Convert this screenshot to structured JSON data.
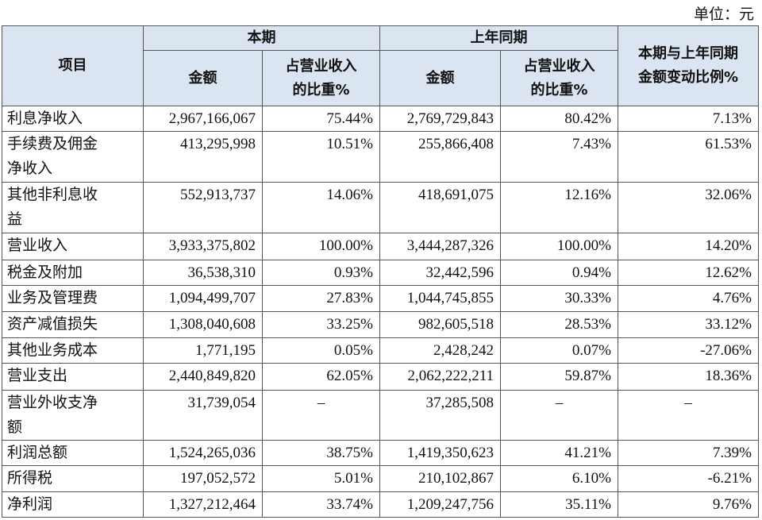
{
  "unit": "单位：元",
  "table": {
    "header": {
      "row1": [
        "项目",
        "本期",
        "上年同期",
        "本期与上年同期金额变动比例%"
      ],
      "row2": [
        "金额",
        "占营业收入的比重%",
        "金额",
        "占营业收入的比重%"
      ]
    },
    "rows": [
      [
        "利息净收入",
        "2,967,166,067",
        "75.44%",
        "2,769,729,843",
        "80.42%",
        "7.13%"
      ],
      [
        "手续费及佣金净收入",
        "413,295,998",
        "10.51%",
        "255,866,408",
        "7.43%",
        "61.53%"
      ],
      [
        "其他非利息收益",
        "552,913,737",
        "14.06%",
        "418,691,075",
        "12.16%",
        "32.06%"
      ],
      [
        "营业收入",
        "3,933,375,802",
        "100.00%",
        "3,444,287,326",
        "100.00%",
        "14.20%"
      ],
      [
        "税金及附加",
        "36,538,310",
        "0.93%",
        "32,442,596",
        "0.94%",
        "12.62%"
      ],
      [
        "业务及管理费",
        "1,094,499,707",
        "27.83%",
        "1,044,745,855",
        "30.33%",
        "4.76%"
      ],
      [
        "资产减值损失",
        "1,308,040,608",
        "33.25%",
        "982,605,518",
        "28.53%",
        "33.12%"
      ],
      [
        "其他业务成本",
        "1,771,195",
        "0.05%",
        "2,428,242",
        "0.07%",
        "-27.06%"
      ],
      [
        "营业支出",
        "2,440,849,820",
        "62.05%",
        "2,062,222,211",
        "59.87%",
        "18.36%"
      ],
      [
        "营业外收支净额",
        "31,739,054",
        "–",
        "37,285,508",
        "–",
        "–"
      ],
      [
        "利润总额",
        "1,524,265,036",
        "38.75%",
        "1,419,350,623",
        "41.21%",
        "7.39%"
      ],
      [
        "所得税",
        "197,052,572",
        "5.01%",
        "210,102,867",
        "6.10%",
        "-6.21%"
      ],
      [
        "净利润",
        "1,327,212,464",
        "33.74%",
        "1,209,247,756",
        "35.11%",
        "9.76%"
      ]
    ]
  }
}
